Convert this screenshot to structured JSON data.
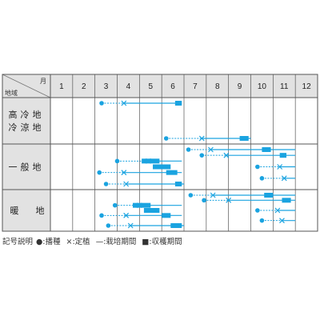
{
  "header": {
    "month_label": "月",
    "region_label": "地域",
    "months": [
      "1",
      "2",
      "3",
      "4",
      "5",
      "6",
      "7",
      "8",
      "9",
      "10",
      "11",
      "12"
    ]
  },
  "regions": [
    {
      "id": "highland",
      "label_lines": [
        "高冷地",
        "冷涼地"
      ],
      "rows": [
        {
          "sow": 3.3,
          "plant": 4.3,
          "grow_end": 6.9,
          "harvest": [
            6.6,
            6.9
          ]
        },
        {
          "sow": 6.2,
          "plant": 7.8,
          "grow_end": 10.0,
          "harvest": [
            9.5,
            9.9
          ]
        }
      ]
    },
    {
      "id": "general",
      "label_lines": [
        "一般地"
      ],
      "rows": [
        {
          "sow": 7.2,
          "plant": 8.2,
          "grow_end": 12.0,
          "harvest": [
            10.5,
            10.9
          ]
        },
        {
          "sow": 7.8,
          "plant": 8.9,
          "grow_end": 12.0,
          "harvest": [
            11.3,
            11.6
          ]
        },
        {
          "sow": 4.0,
          "plant": 5.4,
          "grow_end": 6.9,
          "harvest": [
            5.1,
            5.9
          ]
        },
        {
          "sow": 10.3,
          "plant": 11.3,
          "grow_end": 12.0,
          "harvest": [
            5.6,
            6.4
          ]
        },
        {
          "sow": 3.2,
          "plant": 4.3,
          "grow_end": 6.9,
          "harvest": [
            6.2,
            6.7
          ]
        },
        {
          "sow": 10.5,
          "plant": 11.5,
          "grow_end": 12.0,
          "harvest": null
        },
        {
          "sow": 3.5,
          "plant": 4.4,
          "grow_end": 7.0,
          "harvest": [
            6.6,
            6.9
          ]
        }
      ]
    },
    {
      "id": "warm",
      "label_lines": [
        "暖",
        "地"
      ],
      "rows": [
        {
          "sow": 7.3,
          "plant": 8.3,
          "grow_end": 12.0,
          "harvest": [
            10.6,
            11.0
          ]
        },
        {
          "sow": 7.9,
          "plant": 9.0,
          "grow_end": 12.0,
          "harvest": [
            11.4,
            11.8
          ]
        },
        {
          "sow": 3.9,
          "plant": 5.0,
          "grow_end": 6.9,
          "harvest": [
            4.7,
            5.5
          ]
        },
        {
          "sow": 10.3,
          "plant": 11.2,
          "grow_end": 12.0,
          "harvest": [
            5.2,
            5.9
          ]
        },
        {
          "sow": 3.3,
          "plant": 4.4,
          "grow_end": 6.9,
          "harvest": [
            6.0,
            6.4
          ]
        },
        {
          "sow": 10.5,
          "plant": 11.4,
          "grow_end": 12.0,
          "harvest": null
        },
        {
          "sow": 3.6,
          "plant": 4.6,
          "grow_end": 7.0,
          "harvest": [
            6.4,
            6.9
          ]
        }
      ]
    }
  ],
  "legend": {
    "title": "記号説明",
    "sow": "●:播種",
    "plant": "×:定植",
    "grow": "—:栽培期間",
    "harvest": "■:収穫期間"
  },
  "colors": {
    "accent": "#1aa3e0",
    "grid": "#555555",
    "header_bg": "#e2e2e2"
  }
}
